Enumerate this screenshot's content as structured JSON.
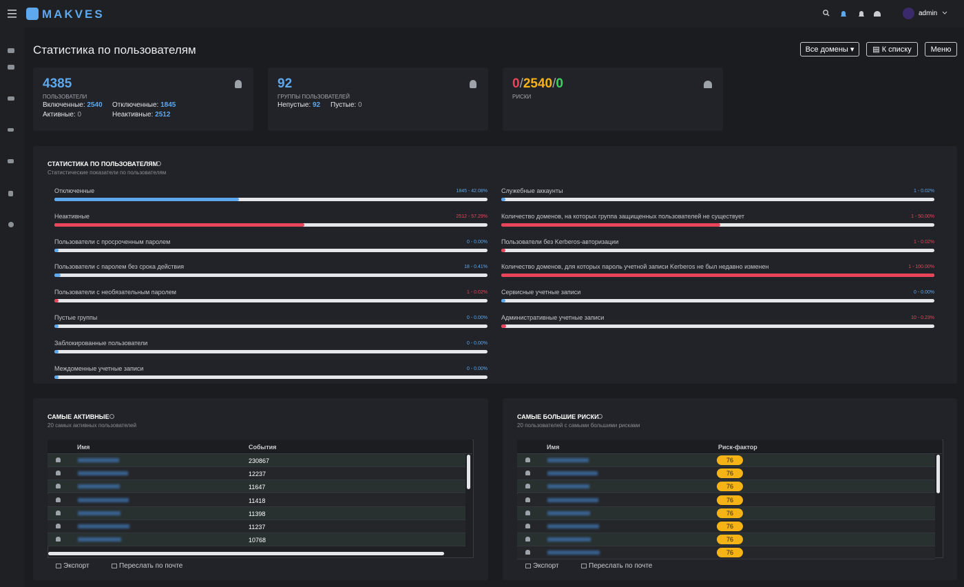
{
  "header": {
    "logo": "MAKVES",
    "user": "admin"
  },
  "page": {
    "title": "Статистика по пользователям",
    "buttons": [
      "Все домены",
      "К списку",
      "Меню"
    ]
  },
  "cards": [
    {
      "value": 4385,
      "label": "ПОЛЬЗОВАТЕЛИ",
      "stats": [
        {
          "name": "Включенные:",
          "value": 2540
        },
        {
          "name": "Отключенные:",
          "value": 1845
        },
        {
          "name": "Активные:",
          "value": 0
        },
        {
          "name": "Неактивные:",
          "value": 2512
        }
      ]
    },
    {
      "value": 92,
      "label": "ГРУППЫ ПОЛЬЗОВАТЕЛЕЙ",
      "stats": [
        {
          "name": "Непустые:",
          "value": 92
        },
        {
          "name": "Пустые:",
          "value": 0
        }
      ]
    }
  ],
  "risks": {
    "values": [
      0,
      2540,
      0
    ],
    "colors": [
      "#e8455b",
      "#f5b315",
      "#3fd160"
    ],
    "separator": "/",
    "label": "РИСКИ"
  },
  "stats_panel": {
    "title": "СТАТИСТИКА ПО ПОЛЬЗОВАТЕЛЯМ",
    "subtitle": "Статистические показатели по пользователям",
    "left": [
      {
        "name": "Отключенные",
        "label": "1845 - 42.08%",
        "percent": 42.08,
        "color": "#5ea8ee"
      },
      {
        "name": "Неактивные",
        "label": "2512 - 57.29%",
        "percent": 57.29,
        "color": "#e8455b"
      },
      {
        "name": "Пользователи с просроченным паролем",
        "label": "0 - 0.00%",
        "percent": 0,
        "color": "#5ea8ee"
      },
      {
        "name": "Пользователи с паролем без срока действия",
        "label": "18 - 0.41%",
        "percent": 0.41,
        "color": "#5ea8ee"
      },
      {
        "name": "Пользователи с необязательным паролем",
        "label": "1 - 0.02%",
        "percent": 0.02,
        "color": "#e8455b"
      },
      {
        "name": "Пустые группы",
        "label": "0 - 0.00%",
        "percent": 0,
        "color": "#5ea8ee"
      },
      {
        "name": "Заблокированные пользователи",
        "label": "0 - 0.00%",
        "percent": 0,
        "color": "#5ea8ee"
      },
      {
        "name": "Междоменные учетные записи",
        "label": "0 - 0.00%",
        "percent": 0,
        "color": "#5ea8ee"
      }
    ],
    "right": [
      {
        "name": "Служебные аккаунты",
        "label": "1 - 0.02%",
        "percent": 0.02,
        "color": "#5ea8ee"
      },
      {
        "name": "Количество доменов, на которых группа защищенных пользователей не существует",
        "label": "1 - 50.00%",
        "percent": 50,
        "color": "#e8455b"
      },
      {
        "name": "Пользователи без Kerberos-авторизации",
        "label": "1 - 0.02%",
        "percent": 0.02,
        "color": "#e8455b"
      },
      {
        "name": "Количество доменов, для которых пароль учетной записи Kerberos не был недавно изменен",
        "label": "1 - 100.00%",
        "percent": 100,
        "color": "#e8455b"
      },
      {
        "name": "Сервисные учетные записи",
        "label": "0 - 0.00%",
        "percent": 0,
        "color": "#5ea8ee"
      },
      {
        "name": "Административные учетные записи",
        "label": "10 - 0.23%",
        "percent": 0.23,
        "color": "#e8455b"
      }
    ]
  },
  "tables": [
    {
      "title": "САМЫЕ АКТИВНЫЕ",
      "subtitle": "20 самых активных пользователей",
      "columns": [
        "Имя",
        "События"
      ],
      "values": [
        230867,
        12237,
        11647,
        11418,
        11398,
        11237,
        10768
      ],
      "badge": false,
      "actions": [
        "Экспорт",
        "Переслать по почте"
      ]
    },
    {
      "title": "САМЫЕ БОЛЬШИЕ РИСКИ",
      "subtitle": "20 пользователей с самыми большими рисками",
      "columns": [
        "Имя",
        "Риск-фактор"
      ],
      "values": [
        76,
        76,
        76,
        76,
        76,
        76,
        76,
        76
      ],
      "badge": true,
      "actions": [
        "Экспорт",
        "Переслать по почте"
      ]
    }
  ]
}
